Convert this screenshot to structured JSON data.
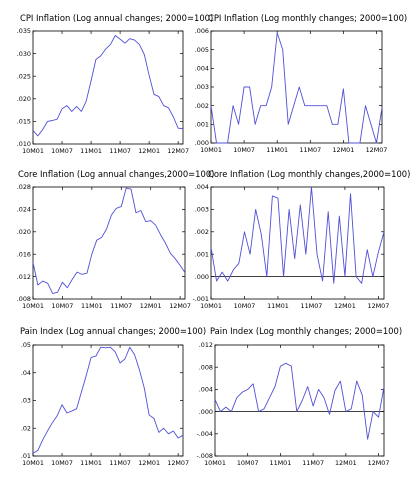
{
  "chart_data": [
    {
      "type": "line",
      "title": "CPI Inflation (Log annual changes; 2000=100)",
      "x_tick_labels": [
        "10M01",
        "10M07",
        "11M01",
        "11M07",
        "12M01",
        "12M07"
      ],
      "ylim": [
        0.01,
        0.035
      ],
      "y_ticks": [
        0.01,
        0.015,
        0.02,
        0.025,
        0.03,
        0.035
      ],
      "y_tick_labels": [
        ".010",
        ".015",
        ".020",
        ".025",
        ".030",
        ".035"
      ],
      "zero_line": false,
      "color": "#5050d8",
      "x": [
        "2010-01",
        "2010-02",
        "2010-03",
        "2010-04",
        "2010-05",
        "2010-06",
        "2010-07",
        "2010-08",
        "2010-09",
        "2010-10",
        "2010-11",
        "2010-12",
        "2011-01",
        "2011-02",
        "2011-03",
        "2011-04",
        "2011-05",
        "2011-06",
        "2011-07",
        "2011-08",
        "2011-09",
        "2011-10",
        "2011-11",
        "2011-12",
        "2012-01",
        "2012-02",
        "2012-03",
        "2012-04",
        "2012-05",
        "2012-06",
        "2012-07",
        "2012-08"
      ],
      "values": [
        0.013,
        0.0118,
        0.0132,
        0.015,
        0.0152,
        0.0155,
        0.0178,
        0.0185,
        0.0172,
        0.0183,
        0.0172,
        0.0195,
        0.024,
        0.0287,
        0.0295,
        0.031,
        0.032,
        0.034,
        0.0332,
        0.0323,
        0.0333,
        0.033,
        0.032,
        0.0298,
        0.0252,
        0.021,
        0.0205,
        0.0185,
        0.018,
        0.016,
        0.0135,
        0.0134
      ]
    },
    {
      "type": "line",
      "title": "CPI Inflation (Log monthly changes; 2000=100)",
      "x_tick_labels": [
        "10M01",
        "10M07",
        "11M01",
        "11M07",
        "12M01",
        "12M07"
      ],
      "ylim": [
        0.0,
        0.006
      ],
      "y_ticks": [
        0.0,
        0.001,
        0.002,
        0.003,
        0.004,
        0.005,
        0.006
      ],
      "y_tick_labels": [
        ".000",
        ".001",
        ".002",
        ".003",
        ".004",
        ".005",
        ".006"
      ],
      "zero_line": false,
      "color": "#5050d8",
      "x": [
        "2010-01",
        "2010-02",
        "2010-03",
        "2010-04",
        "2010-05",
        "2010-06",
        "2010-07",
        "2010-08",
        "2010-09",
        "2010-10",
        "2010-11",
        "2010-12",
        "2011-01",
        "2011-02",
        "2011-03",
        "2011-04",
        "2011-05",
        "2011-06",
        "2011-07",
        "2011-08",
        "2011-09",
        "2011-10",
        "2011-11",
        "2011-12",
        "2012-01",
        "2012-02",
        "2012-03",
        "2012-04",
        "2012-05",
        "2012-06",
        "2012-07",
        "2012-08"
      ],
      "values": [
        0.002,
        0.0,
        0.0,
        0.0,
        0.002,
        0.001,
        0.003,
        0.003,
        0.001,
        0.002,
        0.002,
        0.003,
        0.0059,
        0.005,
        0.001,
        0.002,
        0.003,
        0.002,
        0.002,
        0.002,
        0.002,
        0.002,
        0.001,
        0.001,
        0.0029,
        0.0,
        0.0,
        0.0,
        0.002,
        0.001,
        0.0,
        0.0019
      ]
    },
    {
      "type": "line",
      "title": "Core Inflation (Log annual changes,2000=100)",
      "x_tick_labels": [
        "10M01",
        "10M07",
        "11M01",
        "11M07",
        "12M01",
        "12M07"
      ],
      "ylim": [
        0.008,
        0.028
      ],
      "y_ticks": [
        0.008,
        0.012,
        0.016,
        0.02,
        0.024,
        0.028
      ],
      "y_tick_labels": [
        ".008",
        ".012",
        ".016",
        ".020",
        ".024",
        ".028"
      ],
      "zero_line": false,
      "color": "#5050d8",
      "x": [
        "2010-01",
        "2010-02",
        "2010-03",
        "2010-04",
        "2010-05",
        "2010-06",
        "2010-07",
        "2010-08",
        "2010-09",
        "2010-10",
        "2010-11",
        "2010-12",
        "2011-01",
        "2011-02",
        "2011-03",
        "2011-04",
        "2011-05",
        "2011-06",
        "2011-07",
        "2011-08",
        "2011-09",
        "2011-10",
        "2011-11",
        "2011-12",
        "2012-01",
        "2012-02",
        "2012-03",
        "2012-04",
        "2012-05",
        "2012-06",
        "2012-07",
        "2012-08"
      ],
      "values": [
        0.0145,
        0.0105,
        0.0112,
        0.0108,
        0.009,
        0.0092,
        0.011,
        0.01,
        0.0115,
        0.0128,
        0.0124,
        0.0126,
        0.016,
        0.0185,
        0.019,
        0.0205,
        0.023,
        0.0242,
        0.0245,
        0.0278,
        0.0276,
        0.0234,
        0.0238,
        0.0218,
        0.022,
        0.0212,
        0.0195,
        0.018,
        0.0162,
        0.0152,
        0.014,
        0.0127
      ]
    },
    {
      "type": "line",
      "title": "Core Inflation (Log monthly changes,2000=100)",
      "x_tick_labels": [
        "10M01",
        "10M07",
        "11M01",
        "11M07",
        "12M01",
        "12M07"
      ],
      "ylim": [
        -0.001,
        0.004
      ],
      "y_ticks": [
        -0.001,
        0.0,
        0.001,
        0.002,
        0.003,
        0.004
      ],
      "y_tick_labels": [
        "-.001",
        ".000",
        ".001",
        ".002",
        ".003",
        ".004"
      ],
      "zero_line": true,
      "color": "#5050d8",
      "x": [
        "2010-01",
        "2010-02",
        "2010-03",
        "2010-04",
        "2010-05",
        "2010-06",
        "2010-07",
        "2010-08",
        "2010-09",
        "2010-10",
        "2010-11",
        "2010-12",
        "2011-01",
        "2011-02",
        "2011-03",
        "2011-04",
        "2011-05",
        "2011-06",
        "2011-07",
        "2011-08",
        "2011-09",
        "2011-10",
        "2011-11",
        "2011-12",
        "2012-01",
        "2012-02",
        "2012-03",
        "2012-04",
        "2012-05",
        "2012-06",
        "2012-07",
        "2012-08"
      ],
      "values": [
        0.0013,
        -0.0002,
        0.0002,
        -0.0002,
        0.0003,
        0.0006,
        0.002,
        0.001,
        0.003,
        0.0019,
        0.0,
        0.0036,
        0.0035,
        0.0,
        0.003,
        0.0008,
        0.0032,
        0.001,
        0.004,
        0.001,
        -0.0002,
        0.0029,
        -0.0003,
        0.0027,
        0.0,
        0.0037,
        0.0,
        -0.0003,
        0.0012,
        0.0,
        0.0011,
        0.002
      ]
    },
    {
      "type": "line",
      "title": "Pain Index (Log annual changes; 2000=100)",
      "x_tick_labels": [
        "10M01",
        "10M07",
        "11M01",
        "11M07",
        "12M01",
        "12M07"
      ],
      "ylim": [
        0.01,
        0.05
      ],
      "y_ticks": [
        0.01,
        0.02,
        0.03,
        0.04,
        0.05
      ],
      "y_tick_labels": [
        ".01",
        ".02",
        ".03",
        ".04",
        ".05"
      ],
      "zero_line": false,
      "color": "#5050d8",
      "x": [
        "2010-01",
        "2010-02",
        "2010-03",
        "2010-04",
        "2010-05",
        "2010-06",
        "2010-07",
        "2010-08",
        "2010-09",
        "2010-10",
        "2010-11",
        "2010-12",
        "2011-01",
        "2011-02",
        "2011-03",
        "2011-04",
        "2011-05",
        "2011-06",
        "2011-07",
        "2011-08",
        "2011-09",
        "2011-10",
        "2011-11",
        "2011-12",
        "2012-01",
        "2012-02",
        "2012-03",
        "2012-04",
        "2012-05",
        "2012-06",
        "2012-07",
        "2012-08"
      ],
      "values": [
        0.011,
        0.012,
        0.0158,
        0.019,
        0.022,
        0.0245,
        0.0285,
        0.0255,
        0.0262,
        0.027,
        0.033,
        0.039,
        0.0455,
        0.046,
        0.0492,
        0.049,
        0.0492,
        0.0475,
        0.0435,
        0.045,
        0.0492,
        0.0465,
        0.041,
        0.0345,
        0.0248,
        0.0235,
        0.0185,
        0.02,
        0.018,
        0.019,
        0.0165,
        0.0175
      ]
    },
    {
      "type": "line",
      "title": "Pain Index (Log monthly changes; 2000=100)",
      "x_tick_labels": [
        "10M01",
        "10M07",
        "11M01",
        "11M07",
        "12M01",
        "12M07"
      ],
      "ylim": [
        -0.008,
        0.012
      ],
      "y_ticks": [
        -0.008,
        -0.004,
        0.0,
        0.004,
        0.008,
        0.012
      ],
      "y_tick_labels": [
        "-.008",
        "-.004",
        ".000",
        ".004",
        ".008",
        ".012"
      ],
      "zero_line": true,
      "color": "#5050d8",
      "x": [
        "2010-01",
        "2010-02",
        "2010-03",
        "2010-04",
        "2010-05",
        "2010-06",
        "2010-07",
        "2010-08",
        "2010-09",
        "2010-10",
        "2010-11",
        "2010-12",
        "2011-01",
        "2011-02",
        "2011-03",
        "2011-04",
        "2011-05",
        "2011-06",
        "2011-07",
        "2011-08",
        "2011-09",
        "2011-10",
        "2011-11",
        "2011-12",
        "2012-01",
        "2012-02",
        "2012-03",
        "2012-04",
        "2012-05",
        "2012-06",
        "2012-07",
        "2012-08"
      ],
      "values": [
        0.0022,
        0.0,
        0.0008,
        0.0,
        0.0025,
        0.0035,
        0.004,
        0.005,
        0.0,
        0.0005,
        0.0025,
        0.0045,
        0.0082,
        0.0087,
        0.0082,
        0.0,
        0.002,
        0.0045,
        0.001,
        0.004,
        0.0025,
        -0.0005,
        0.0038,
        0.0055,
        0.0,
        0.0005,
        0.0055,
        0.003,
        -0.005,
        0.0,
        -0.001,
        0.0045
      ]
    }
  ]
}
